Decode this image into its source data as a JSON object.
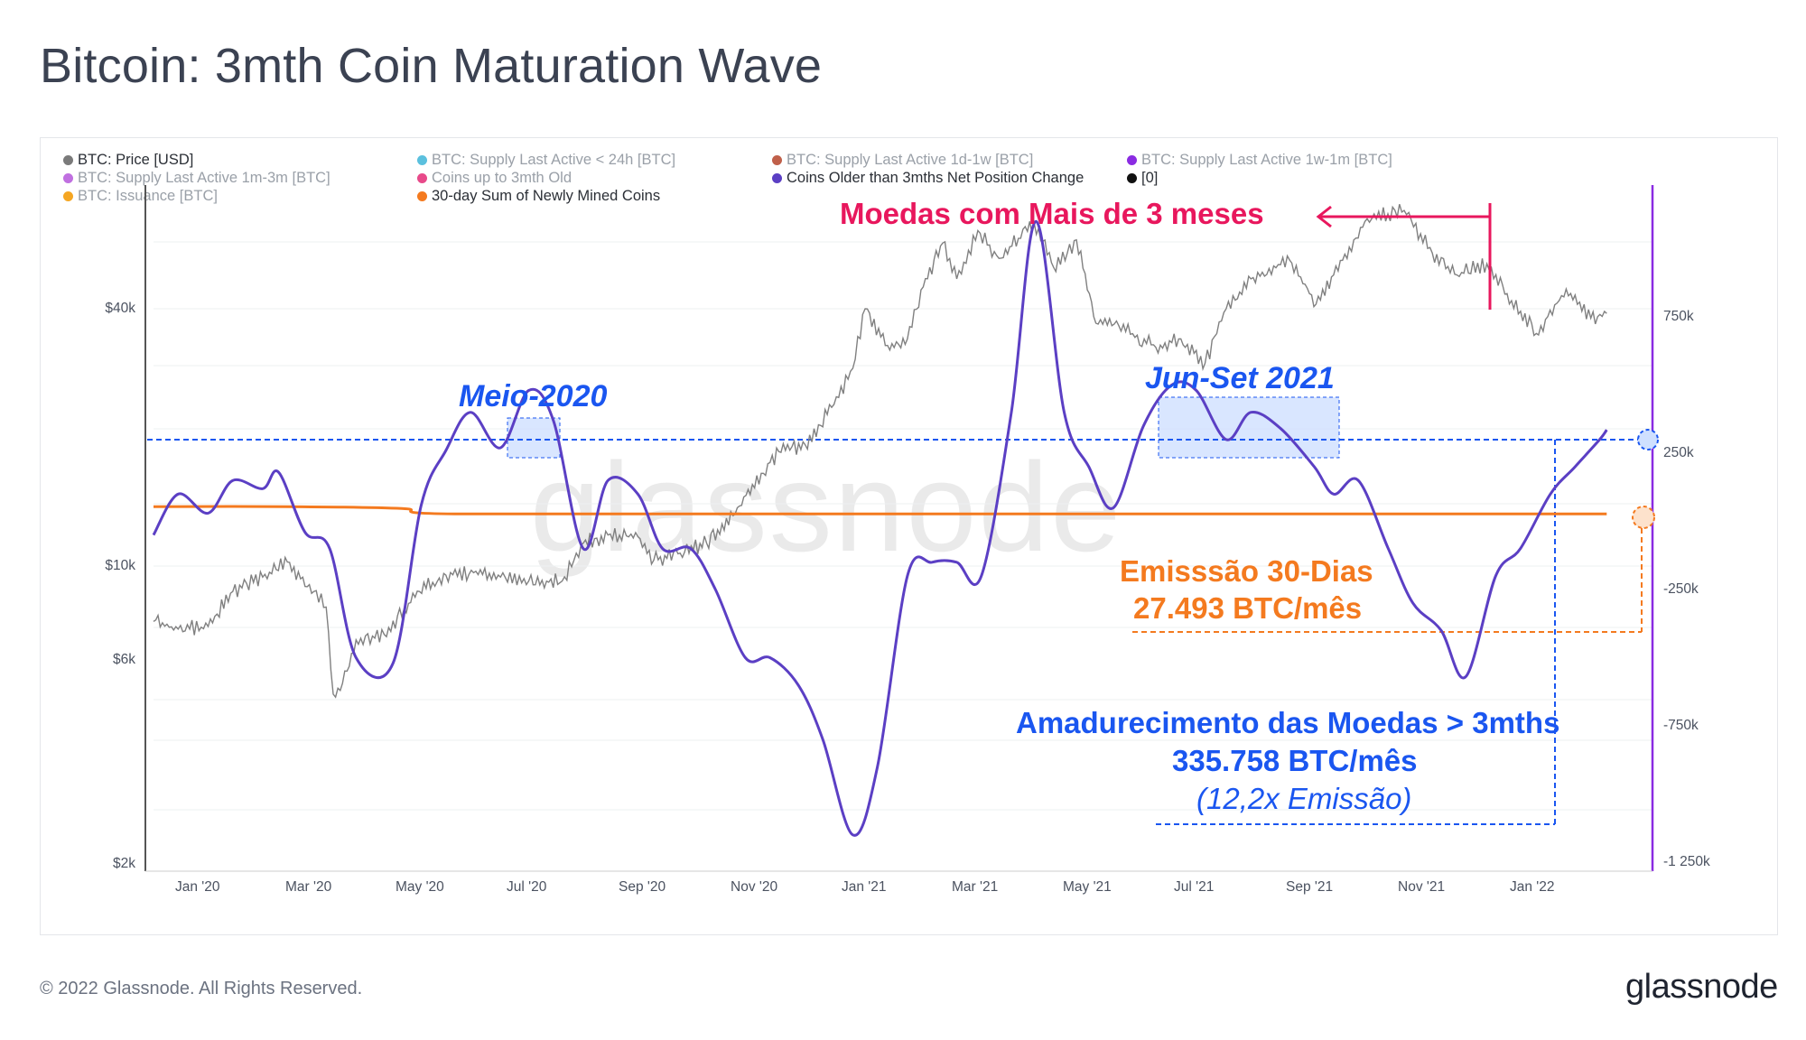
{
  "title": "Bitcoin: 3mth Coin Maturation Wave",
  "footer": "© 2022 Glassnode. All Rights Reserved.",
  "brand": "glassnode",
  "watermark": "glassnode",
  "colors": {
    "price": "#808080",
    "wave": "#5b3fc4",
    "issuance": "#f47a1f",
    "pink": "#e8175d",
    "blue": "#1a56f0",
    "orange": "#f47a1f",
    "purple_axis": "#8a2be2"
  },
  "legend": [
    {
      "label": "BTC: Price [USD]",
      "color": "#7a7a7a",
      "active": true
    },
    {
      "label": "BTC: Supply Last Active < 24h [BTC]",
      "color": "#5bc0de",
      "active": false
    },
    {
      "label": "BTC: Supply Last Active 1d-1w [BTC]",
      "color": "#c0604a",
      "active": false
    },
    {
      "label": "BTC: Supply Last Active 1w-1m [BTC]",
      "color": "#8a2be2",
      "active": false
    },
    {
      "label": "BTC: Supply Last Active 1m-3m [BTC]",
      "color": "#c070e0",
      "active": false
    },
    {
      "label": "Coins up to 3mth Old",
      "color": "#e84a8a",
      "active": false
    },
    {
      "label": "Coins Older than 3mths Net Position Change",
      "color": "#5b3fc4",
      "active": true
    },
    {
      "label": "[0]",
      "color": "#111111",
      "active": true
    },
    {
      "label": "BTC: Issuance [BTC]",
      "color": "#f5a623",
      "active": false
    },
    {
      "label": "30-day Sum of Newly Mined Coins",
      "color": "#f47a1f",
      "active": true
    }
  ],
  "annotations": {
    "older_coins": "Moedas com Mais de 3 meses",
    "mid_2020": "Meio-2020",
    "jun_sep_2021": "Jun-Set 2021",
    "emission_line1": "Emisssão 30-Dias",
    "emission_line2": "27.493 BTC/mês",
    "maturation_line1": "Amadurecimento das Moedas > 3mths",
    "maturation_line2": "335.758 BTC/mês",
    "maturation_line3": "(12,2x Emissão)"
  },
  "chart_data": {
    "type": "line",
    "title": "Bitcoin: 3mth Coin Maturation Wave",
    "x_range": [
      "2019-12-01",
      "2022-03-31"
    ],
    "x_ticks": [
      "Jan '20",
      "Mar '20",
      "May '20",
      "Jul '20",
      "Sep '20",
      "Nov '20",
      "Jan '21",
      "Mar '21",
      "May '21",
      "Jul '21",
      "Sep '21",
      "Nov '21",
      "Jan '22"
    ],
    "y_left": {
      "label": "BTC: Price [USD]",
      "scale": "log",
      "ticks": [
        "$2k",
        "$6k",
        "$10k",
        "$40k"
      ],
      "tick_values": [
        2000,
        6000,
        10000,
        40000
      ],
      "range": [
        2000,
        100000
      ]
    },
    "y_right": {
      "label": "BTC",
      "scale": "linear",
      "ticks": [
        "750k",
        "250k",
        "-250k",
        "-750k",
        "-1 250k"
      ],
      "tick_values": [
        750000,
        250000,
        -250000,
        -750000,
        -1250000
      ],
      "range": [
        -1250000,
        1250000
      ]
    },
    "series": [
      {
        "name": "BTC: Price [USD]",
        "axis": "left",
        "points": [
          [
            "2019-12-01",
            7400
          ],
          [
            "2019-12-15",
            7100
          ],
          [
            "2020-01-01",
            7200
          ],
          [
            "2020-01-15",
            8700
          ],
          [
            "2020-02-01",
            9400
          ],
          [
            "2020-02-15",
            10200
          ],
          [
            "2020-03-01",
            8700
          ],
          [
            "2020-03-08",
            8000
          ],
          [
            "2020-03-12",
            5000
          ],
          [
            "2020-03-16",
            5100
          ],
          [
            "2020-03-25",
            6700
          ],
          [
            "2020-04-10",
            6900
          ],
          [
            "2020-04-30",
            8700
          ],
          [
            "2020-05-15",
            9500
          ],
          [
            "2020-06-01",
            9700
          ],
          [
            "2020-06-15",
            9400
          ],
          [
            "2020-07-01",
            9200
          ],
          [
            "2020-07-20",
            9200
          ],
          [
            "2020-08-01",
            11300
          ],
          [
            "2020-08-15",
            11800
          ],
          [
            "2020-09-01",
            11700
          ],
          [
            "2020-09-10",
            10300
          ],
          [
            "2020-09-25",
            10700
          ],
          [
            "2020-10-10",
            11300
          ],
          [
            "2020-10-25",
            13100
          ],
          [
            "2020-11-05",
            15500
          ],
          [
            "2020-11-20",
            18500
          ],
          [
            "2020-12-05",
            19200
          ],
          [
            "2020-12-20",
            23500
          ],
          [
            "2021-01-01",
            29000
          ],
          [
            "2021-01-08",
            40000
          ],
          [
            "2021-01-22",
            32000
          ],
          [
            "2021-02-01",
            34000
          ],
          [
            "2021-02-10",
            45000
          ],
          [
            "2021-02-21",
            57000
          ],
          [
            "2021-03-01",
            47000
          ],
          [
            "2021-03-13",
            61000
          ],
          [
            "2021-03-25",
            52500
          ],
          [
            "2021-04-05",
            58500
          ],
          [
            "2021-04-14",
            63500
          ],
          [
            "2021-04-25",
            50000
          ],
          [
            "2021-05-08",
            58000
          ],
          [
            "2021-05-19",
            37000
          ],
          [
            "2021-06-01",
            36500
          ],
          [
            "2021-06-22",
            32500
          ],
          [
            "2021-07-05",
            34000
          ],
          [
            "2021-07-20",
            29800
          ],
          [
            "2021-08-01",
            40000
          ],
          [
            "2021-08-15",
            47000
          ],
          [
            "2021-09-06",
            52000
          ],
          [
            "2021-09-21",
            41000
          ],
          [
            "2021-10-01",
            48000
          ],
          [
            "2021-10-20",
            65000
          ],
          [
            "2021-11-10",
            68000
          ],
          [
            "2021-11-26",
            54000
          ],
          [
            "2021-12-10",
            48000
          ],
          [
            "2021-12-27",
            51000
          ],
          [
            "2022-01-10",
            41800
          ],
          [
            "2022-01-24",
            35000
          ],
          [
            "2022-02-10",
            44500
          ],
          [
            "2022-02-24",
            38000
          ],
          [
            "2022-03-05",
            39000
          ]
        ]
      },
      {
        "name": "Coins Older than 3mths Net Position Change",
        "axis": "right",
        "points": [
          [
            "2019-12-01",
            -50000
          ],
          [
            "2019-12-15",
            100000
          ],
          [
            "2020-01-01",
            30000
          ],
          [
            "2020-01-15",
            150000
          ],
          [
            "2020-02-01",
            120000
          ],
          [
            "2020-02-10",
            180000
          ],
          [
            "2020-02-25",
            -40000
          ],
          [
            "2020-03-10",
            -100000
          ],
          [
            "2020-03-25",
            -500000
          ],
          [
            "2020-04-15",
            -520000
          ],
          [
            "2020-05-01",
            60000
          ],
          [
            "2020-05-15",
            260000
          ],
          [
            "2020-05-29",
            400000
          ],
          [
            "2020-06-15",
            270000
          ],
          [
            "2020-07-01",
            480000
          ],
          [
            "2020-07-15",
            370000
          ],
          [
            "2020-08-01",
            -100000
          ],
          [
            "2020-08-15",
            150000
          ],
          [
            "2020-09-01",
            100000
          ],
          [
            "2020-09-15",
            -100000
          ],
          [
            "2020-10-01",
            -100000
          ],
          [
            "2020-10-15",
            -250000
          ],
          [
            "2020-11-01",
            -500000
          ],
          [
            "2020-11-15",
            -500000
          ],
          [
            "2020-12-01",
            -600000
          ],
          [
            "2020-12-15",
            -800000
          ],
          [
            "2021-01-01",
            -1150000
          ],
          [
            "2021-01-15",
            -900000
          ],
          [
            "2021-02-01",
            -200000
          ],
          [
            "2021-02-15",
            -150000
          ],
          [
            "2021-03-01",
            -150000
          ],
          [
            "2021-03-15",
            -200000
          ],
          [
            "2021-04-01",
            400000
          ],
          [
            "2021-04-15",
            1100000
          ],
          [
            "2021-05-01",
            400000
          ],
          [
            "2021-05-15",
            200000
          ],
          [
            "2021-05-29",
            50000
          ],
          [
            "2021-06-15",
            350000
          ],
          [
            "2021-07-01",
            500000
          ],
          [
            "2021-07-15",
            480000
          ],
          [
            "2021-08-01",
            300000
          ],
          [
            "2021-08-15",
            400000
          ],
          [
            "2021-09-01",
            340000
          ],
          [
            "2021-09-20",
            200000
          ],
          [
            "2021-10-01",
            100000
          ],
          [
            "2021-10-15",
            150000
          ],
          [
            "2021-11-01",
            -100000
          ],
          [
            "2021-11-15",
            -300000
          ],
          [
            "2021-12-01",
            -400000
          ],
          [
            "2021-12-15",
            -570000
          ],
          [
            "2022-01-01",
            -200000
          ],
          [
            "2022-01-15",
            -100000
          ],
          [
            "2022-02-01",
            100000
          ],
          [
            "2022-02-15",
            200000
          ],
          [
            "2022-03-01",
            300000
          ],
          [
            "2022-03-05",
            335758
          ]
        ]
      },
      {
        "name": "30-day Sum of Newly Mined Coins",
        "axis": "right",
        "points": [
          [
            "2019-12-01",
            54000
          ],
          [
            "2020-02-15",
            54000
          ],
          [
            "2020-04-20",
            47000
          ],
          [
            "2020-05-20",
            27000
          ],
          [
            "2021-01-01",
            27500
          ],
          [
            "2022-03-05",
            27493
          ]
        ]
      }
    ],
    "annotations": [
      "Moedas com Mais de 3 meses",
      "Meio-2020",
      "Jun-Set 2021",
      "Emisssão 30-Dias 27.493 BTC/mês",
      "Amadurecimento das Moedas > 3mths 335.758 BTC/mês (12,2x Emissão)"
    ]
  }
}
